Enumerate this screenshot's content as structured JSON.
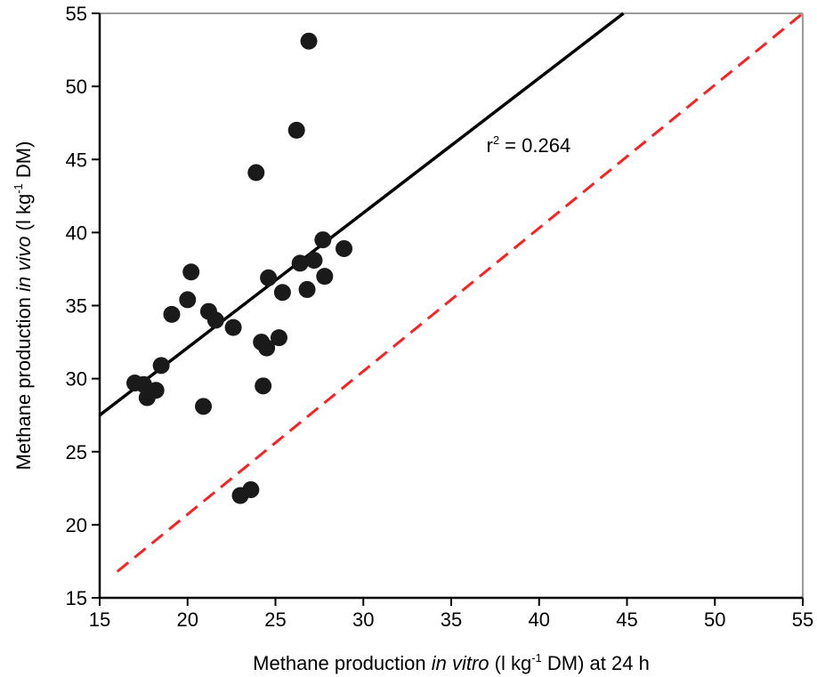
{
  "chart_data": {
    "type": "scatter",
    "title": "",
    "xlabel": {
      "before": "Methane production ",
      "italic": "in vitro",
      "after_pre_sup": " (l kg",
      "sup": "-1",
      "after": " DM) at 24 h"
    },
    "ylabel": {
      "before": "Methane production ",
      "italic": "in vivo",
      "after_pre_sup": " (l kg",
      "sup": "-1",
      "after": " DM)"
    },
    "xlim": [
      15,
      55
    ],
    "ylim": [
      15,
      55
    ],
    "xticks": [
      15,
      20,
      25,
      30,
      35,
      40,
      45,
      50,
      55
    ],
    "yticks": [
      15,
      20,
      25,
      30,
      35,
      40,
      45,
      50,
      55
    ],
    "grid": false,
    "points": [
      {
        "x": 17.0,
        "y": 29.7
      },
      {
        "x": 17.5,
        "y": 29.6
      },
      {
        "x": 17.7,
        "y": 28.7
      },
      {
        "x": 18.2,
        "y": 29.2
      },
      {
        "x": 18.5,
        "y": 30.9
      },
      {
        "x": 19.1,
        "y": 34.4
      },
      {
        "x": 20.0,
        "y": 35.4
      },
      {
        "x": 20.2,
        "y": 37.3
      },
      {
        "x": 20.9,
        "y": 28.1
      },
      {
        "x": 21.2,
        "y": 34.6
      },
      {
        "x": 21.6,
        "y": 34.0
      },
      {
        "x": 22.6,
        "y": 33.5
      },
      {
        "x": 23.0,
        "y": 22.0
      },
      {
        "x": 23.6,
        "y": 22.4
      },
      {
        "x": 23.9,
        "y": 44.1
      },
      {
        "x": 24.2,
        "y": 32.5
      },
      {
        "x": 24.3,
        "y": 29.5
      },
      {
        "x": 24.5,
        "y": 32.1
      },
      {
        "x": 24.6,
        "y": 36.9
      },
      {
        "x": 25.2,
        "y": 32.8
      },
      {
        "x": 25.4,
        "y": 35.9
      },
      {
        "x": 26.2,
        "y": 47.0
      },
      {
        "x": 26.4,
        "y": 37.9
      },
      {
        "x": 26.8,
        "y": 36.1
      },
      {
        "x": 26.9,
        "y": 53.1
      },
      {
        "x": 27.2,
        "y": 38.1
      },
      {
        "x": 27.7,
        "y": 39.5
      },
      {
        "x": 27.8,
        "y": 37.0
      },
      {
        "x": 28.9,
        "y": 38.9
      }
    ],
    "regression_line": {
      "x": [
        15.0,
        44.8
      ],
      "y": [
        27.5,
        55.0
      ],
      "color": "#000000",
      "style": "solid"
    },
    "identity_line": {
      "x": [
        16.0,
        55.0
      ],
      "y": [
        16.8,
        55.0
      ],
      "color": "#ff2020",
      "style": "dashed"
    },
    "annotation": {
      "base": "r",
      "sup": "2",
      "rest": " = 0.264",
      "x": 37.0,
      "y": 45.5
    },
    "colors": {
      "points": "#1a1a1a",
      "regression": "#000000",
      "identity": "#ff2020"
    }
  }
}
